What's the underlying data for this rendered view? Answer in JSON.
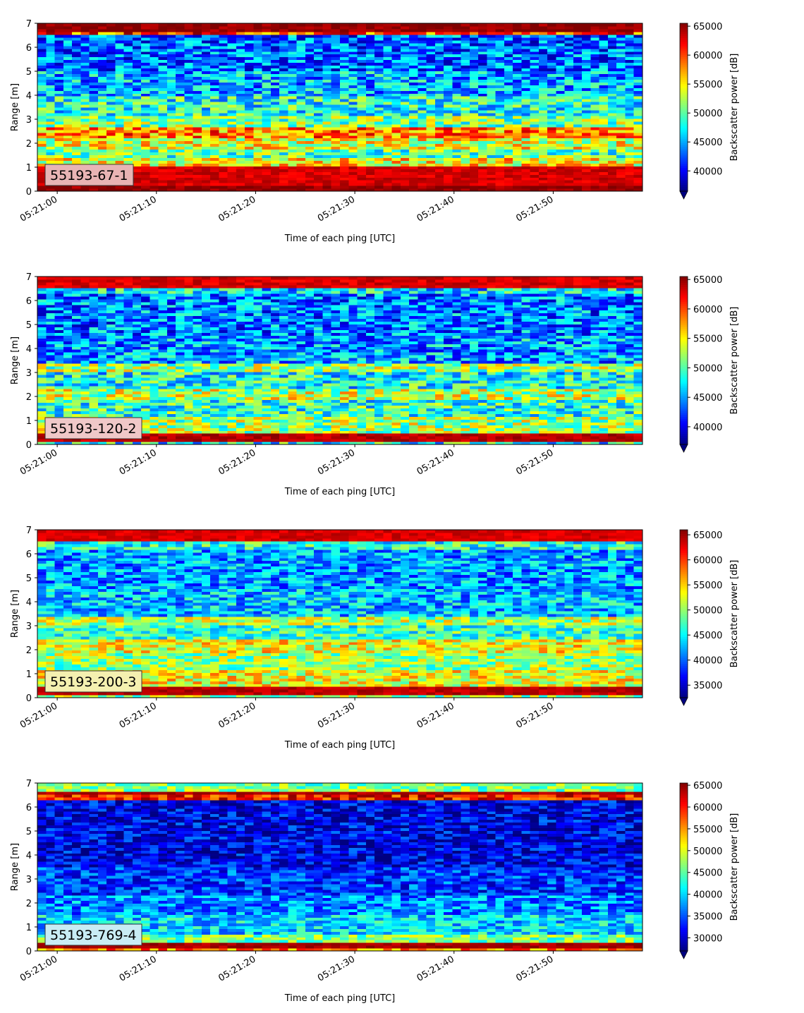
{
  "chart_data": [
    {
      "type": "heatmap",
      "label": "55193-67-1",
      "label_bg": "#e8b4b4",
      "xlabel": "Time of each ping [UTC]",
      "ylabel": "Range [m]",
      "xlim": [
        "05:20:58",
        "05:21:59"
      ],
      "ylim": [
        0,
        7
      ],
      "xticks": [
        "05:21:00",
        "05:21:10",
        "05:21:20",
        "05:21:30",
        "05:21:40",
        "05:21:50"
      ],
      "yticks": [
        0,
        1,
        2,
        3,
        4,
        5,
        6,
        7
      ],
      "colorbar": {
        "label": "Backscatter power [dB]",
        "min": 36500,
        "max": 65500,
        "ticks": [
          40000,
          45000,
          50000,
          55000,
          60000,
          65000
        ],
        "colormap": "jet",
        "extend": "min"
      },
      "profile": [
        [
          0.0,
          0.2,
          65000
        ],
        [
          0.2,
          1.1,
          63000
        ],
        [
          1.1,
          1.4,
          55000
        ],
        [
          1.4,
          1.8,
          50000
        ],
        [
          1.8,
          2.2,
          54000
        ],
        [
          2.2,
          2.7,
          58000
        ],
        [
          2.7,
          3.2,
          51000
        ],
        [
          3.2,
          4.0,
          48000
        ],
        [
          4.0,
          5.0,
          45000
        ],
        [
          5.0,
          6.5,
          43000
        ],
        [
          6.5,
          6.6,
          60000
        ],
        [
          6.6,
          7.0,
          65000
        ]
      ]
    },
    {
      "type": "heatmap",
      "label": "55193-120-2",
      "label_bg": "#f0c8c8",
      "xlabel": "Time of each ping [UTC]",
      "ylabel": "Range [m]",
      "xlim": [
        "05:20:58",
        "05:21:59"
      ],
      "ylim": [
        0,
        7
      ],
      "xticks": [
        "05:21:00",
        "05:21:10",
        "05:21:20",
        "05:21:30",
        "05:21:40",
        "05:21:50"
      ],
      "yticks": [
        0,
        1,
        2,
        3,
        4,
        5,
        6,
        7
      ],
      "colorbar": {
        "label": "Backscatter power [dB]",
        "min": 37000,
        "max": 65500,
        "ticks": [
          40000,
          45000,
          50000,
          55000,
          60000,
          65000
        ],
        "colormap": "jet",
        "extend": "min"
      },
      "profile": [
        [
          0.0,
          0.15,
          48000
        ],
        [
          0.15,
          0.5,
          64000
        ],
        [
          0.5,
          1.2,
          52000
        ],
        [
          1.2,
          1.9,
          49000
        ],
        [
          1.9,
          2.3,
          53000
        ],
        [
          2.3,
          3.0,
          48000
        ],
        [
          3.0,
          3.4,
          52000
        ],
        [
          3.4,
          4.5,
          45000
        ],
        [
          4.5,
          6.3,
          44000
        ],
        [
          6.3,
          6.5,
          47000
        ],
        [
          6.5,
          7.0,
          63000
        ]
      ]
    },
    {
      "type": "heatmap",
      "label": "55193-200-3",
      "label_bg": "#f4f0b0",
      "xlabel": "Time of each ping [UTC]",
      "ylabel": "Range [m]",
      "xlim": [
        "05:20:58",
        "05:21:59"
      ],
      "ylim": [
        0,
        7
      ],
      "xticks": [
        "05:21:00",
        "05:21:10",
        "05:21:20",
        "05:21:30",
        "05:21:40",
        "05:21:50"
      ],
      "yticks": [
        0,
        1,
        2,
        3,
        4,
        5,
        6,
        7
      ],
      "colorbar": {
        "label": "Backscatter power [dB]",
        "min": 32500,
        "max": 66000,
        "ticks": [
          35000,
          40000,
          45000,
          50000,
          55000,
          60000,
          65000
        ],
        "colormap": "jet",
        "extend": "min"
      },
      "profile": [
        [
          0.0,
          0.15,
          50000
        ],
        [
          0.15,
          0.45,
          64000
        ],
        [
          0.45,
          1.2,
          53000
        ],
        [
          1.2,
          1.9,
          50000
        ],
        [
          1.9,
          2.5,
          53000
        ],
        [
          2.5,
          3.0,
          47000
        ],
        [
          3.0,
          3.4,
          51000
        ],
        [
          3.4,
          4.5,
          43000
        ],
        [
          4.5,
          6.2,
          42000
        ],
        [
          6.2,
          6.5,
          46000
        ],
        [
          6.5,
          7.0,
          63000
        ]
      ]
    },
    {
      "type": "heatmap",
      "label": "55193-769-4",
      "label_bg": "#c8ecf4",
      "xlabel": "Time of each ping [UTC]",
      "ylabel": "Range [m]",
      "xlim": [
        "05:20:58",
        "05:21:59"
      ],
      "ylim": [
        0,
        7
      ],
      "xticks": [
        "05:21:00",
        "05:21:10",
        "05:21:20",
        "05:21:30",
        "05:21:40",
        "05:21:50"
      ],
      "yticks": [
        0,
        1,
        2,
        3,
        4,
        5,
        6,
        7
      ],
      "colorbar": {
        "label": "Backscatter power [dB]",
        "min": 27000,
        "max": 65500,
        "ticks": [
          30000,
          35000,
          40000,
          45000,
          50000,
          55000,
          60000,
          65000
        ],
        "colormap": "jet",
        "extend": "min"
      },
      "profile": [
        [
          0.0,
          0.1,
          56000
        ],
        [
          0.1,
          0.4,
          64000
        ],
        [
          0.4,
          0.7,
          46000
        ],
        [
          0.7,
          1.5,
          40000
        ],
        [
          1.5,
          2.3,
          37000
        ],
        [
          2.3,
          3.5,
          34000
        ],
        [
          3.5,
          6.3,
          31000
        ],
        [
          6.3,
          6.5,
          60000
        ],
        [
          6.5,
          6.7,
          64000
        ],
        [
          6.7,
          7.0,
          46000
        ]
      ]
    }
  ]
}
